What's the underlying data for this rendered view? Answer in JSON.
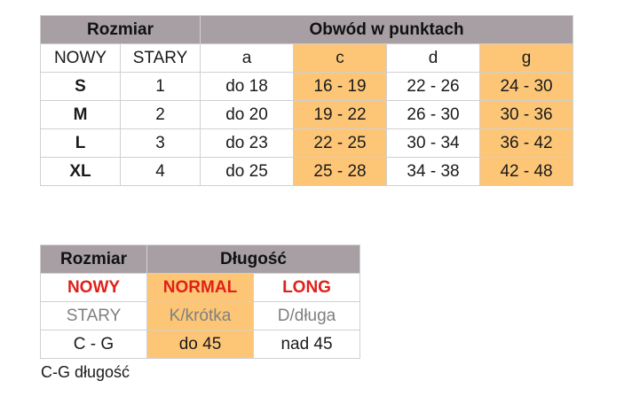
{
  "table1": {
    "header_size": "Rozmiar",
    "header_circ": "Obwód w punktach",
    "sub": [
      "NOWY",
      "STARY",
      "a",
      "c",
      "d",
      "g"
    ],
    "rows": [
      [
        "S",
        "1",
        "do 18",
        "16 - 19",
        "22 - 26",
        "24 - 30"
      ],
      [
        "M",
        "2",
        "do 20",
        "19 - 22",
        "26 - 30",
        "30 - 36"
      ],
      [
        "L",
        "3",
        "do 23",
        "22 - 25",
        "30 - 34",
        "36 - 42"
      ],
      [
        "XL",
        "4",
        "do 25",
        "25 - 28",
        "34 - 38",
        "42 - 48"
      ]
    ]
  },
  "table2": {
    "header_size": "Rozmiar",
    "header_length": "Długość",
    "row_new": [
      "NOWY",
      "NORMAL",
      "LONG"
    ],
    "row_old": [
      "STARY",
      "K/krótka",
      "D/długa"
    ],
    "row_cg": [
      "C - G",
      "do 45",
      "nad 45"
    ]
  },
  "note": "C-G długość",
  "colors": {
    "header": "#a79fa3",
    "highlight": "#fdc677",
    "red": "#e02018",
    "gray": "#7f7f7f"
  }
}
